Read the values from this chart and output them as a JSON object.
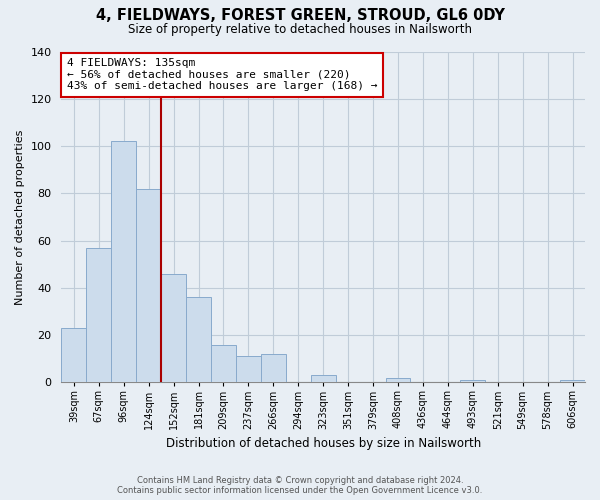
{
  "title": "4, FIELDWAYS, FOREST GREEN, STROUD, GL6 0DY",
  "subtitle": "Size of property relative to detached houses in Nailsworth",
  "xlabel": "Distribution of detached houses by size in Nailsworth",
  "ylabel": "Number of detached properties",
  "categories": [
    "39sqm",
    "67sqm",
    "96sqm",
    "124sqm",
    "152sqm",
    "181sqm",
    "209sqm",
    "237sqm",
    "266sqm",
    "294sqm",
    "323sqm",
    "351sqm",
    "379sqm",
    "408sqm",
    "436sqm",
    "464sqm",
    "493sqm",
    "521sqm",
    "549sqm",
    "578sqm",
    "606sqm"
  ],
  "values": [
    23,
    57,
    102,
    82,
    46,
    36,
    16,
    11,
    12,
    0,
    3,
    0,
    0,
    2,
    0,
    0,
    1,
    0,
    0,
    0,
    1
  ],
  "bar_color": "#ccdcec",
  "bar_edge_color": "#88aacc",
  "vline_color": "#aa0000",
  "annotation_title": "4 FIELDWAYS: 135sqm",
  "annotation_line1": "← 56% of detached houses are smaller (220)",
  "annotation_line2": "43% of semi-detached houses are larger (168) →",
  "annotation_box_facecolor": "white",
  "annotation_box_edgecolor": "#cc0000",
  "ylim": [
    0,
    140
  ],
  "yticks": [
    0,
    20,
    40,
    60,
    80,
    100,
    120,
    140
  ],
  "footer1": "Contains HM Land Registry data © Crown copyright and database right 2024.",
  "footer2": "Contains public sector information licensed under the Open Government Licence v3.0.",
  "bg_color": "#e8eef4",
  "grid_color": "#c0ccd8",
  "title_fontsize": 10.5,
  "subtitle_fontsize": 8.5
}
